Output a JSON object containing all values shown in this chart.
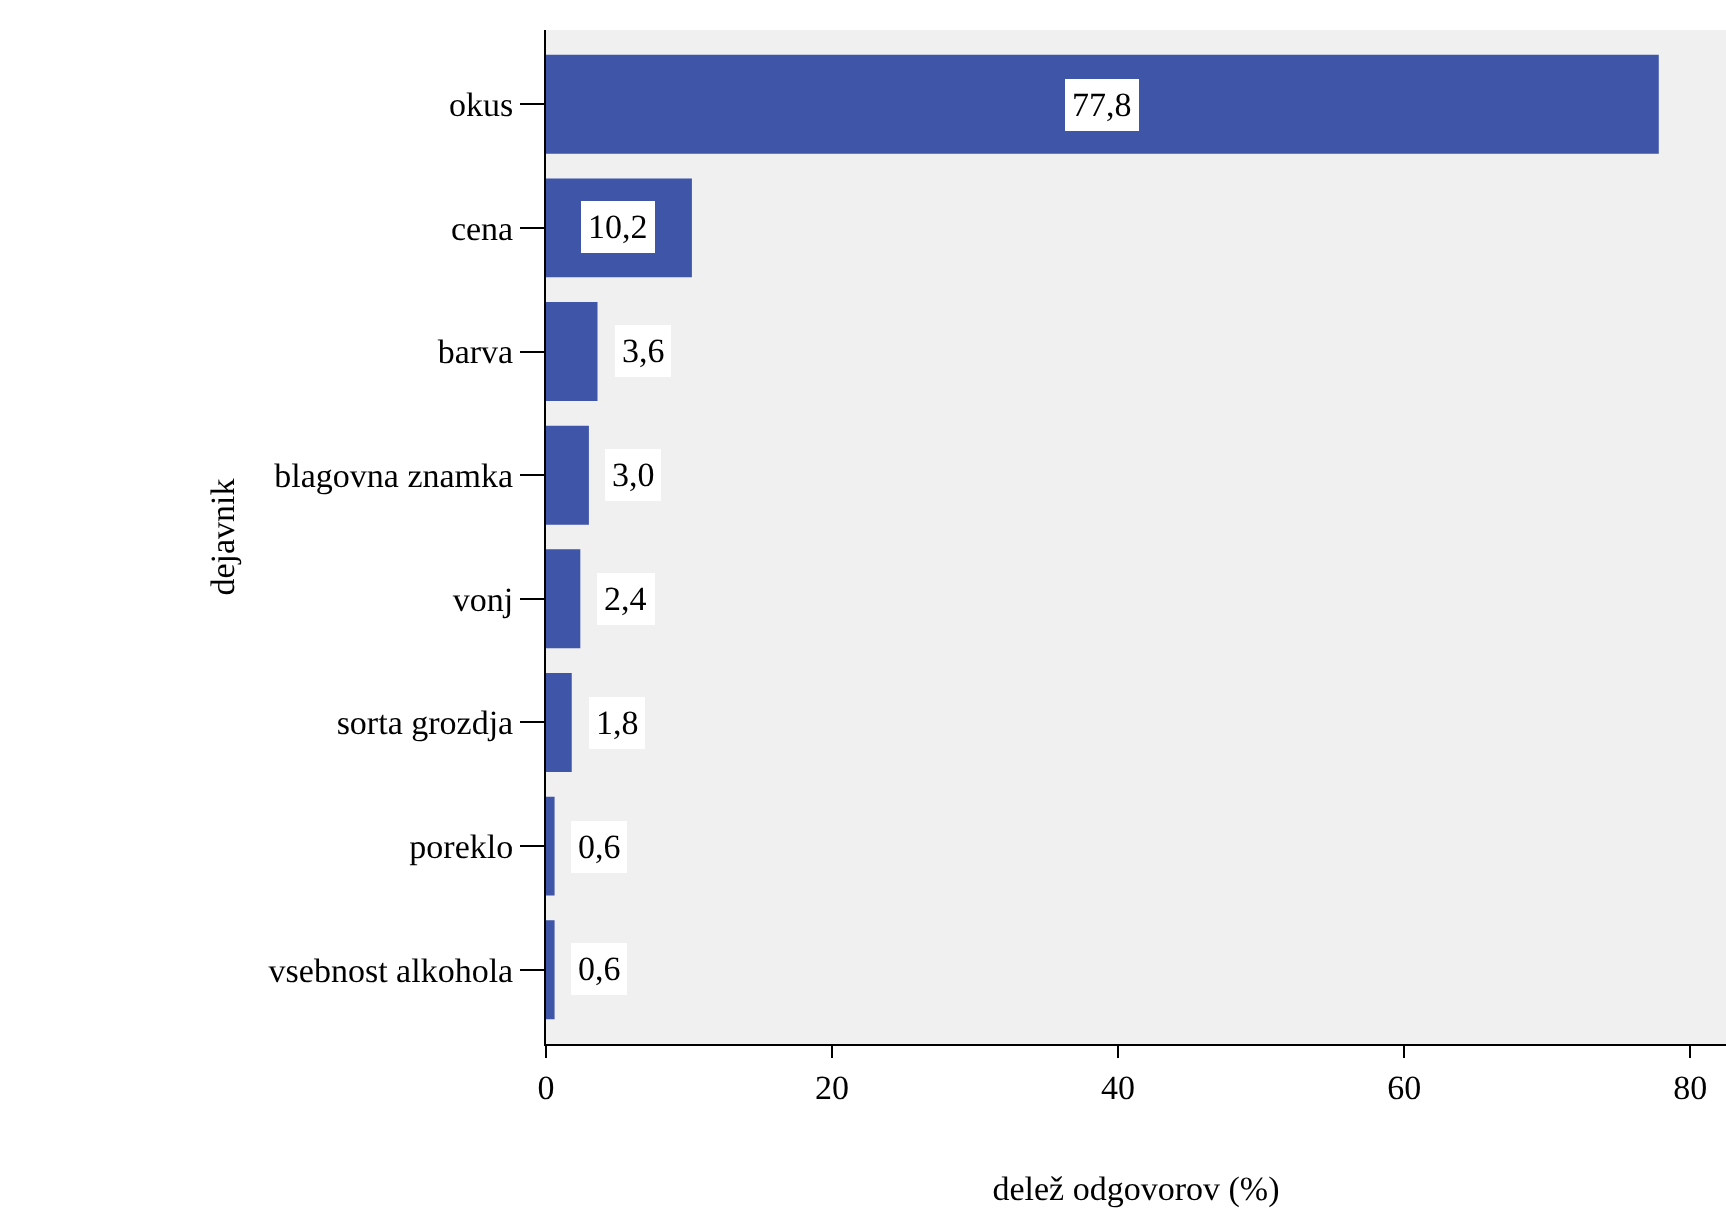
{
  "chart_data": {
    "type": "bar",
    "orientation": "horizontal",
    "xlabel": "delež odgovorov (%)",
    "ylabel": "dejavnik",
    "categories": [
      "okus",
      "cena",
      "barva",
      "blagovna znamka",
      "vonj",
      "sorta grozdja",
      "poreklo",
      "vsebnost alkohola"
    ],
    "values": [
      77.8,
      10.2,
      3.6,
      3.0,
      2.4,
      1.8,
      0.6,
      0.6
    ],
    "value_labels": [
      "77,8",
      "10,2",
      "3,6",
      "3,0",
      "2,4",
      "1,8",
      "0,6",
      "0,6"
    ],
    "color": "#3f55a8",
    "xlim": [
      0,
      82.5
    ],
    "xticks": [
      0,
      20,
      40,
      60,
      80
    ],
    "grid": false
  }
}
